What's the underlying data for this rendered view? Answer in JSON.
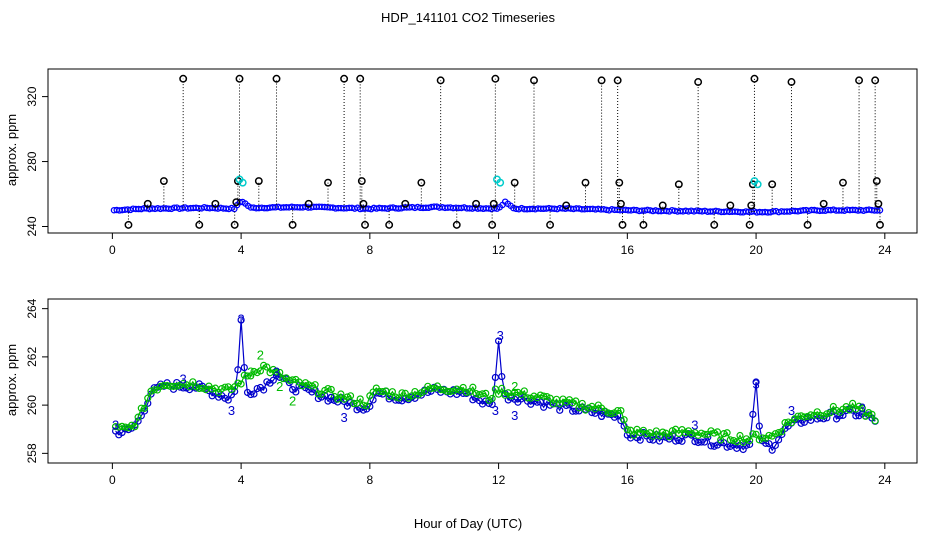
{
  "figure": {
    "title": "HDP_141101  CO2 Timeseries",
    "xlabel": "Hour of Day (UTC)"
  },
  "chart_data": [
    {
      "type": "scatter",
      "title": "",
      "xlabel": "",
      "ylabel": "approx. ppm",
      "xlim": [
        -2,
        25
      ],
      "ylim": [
        236,
        337
      ],
      "xticks": [
        0,
        4,
        8,
        12,
        16,
        20,
        24
      ],
      "yticks": [
        240,
        280,
        320
      ],
      "baseline": {
        "color": "#0000ff",
        "start": 250,
        "hours": [
          0,
          24
        ],
        "profile": [
          [
            0,
            250
          ],
          [
            1,
            251
          ],
          [
            3,
            251.5
          ],
          [
            3.8,
            251
          ],
          [
            4,
            256
          ],
          [
            4.3,
            251.5
          ],
          [
            6,
            252
          ],
          [
            8,
            251
          ],
          [
            10,
            252
          ],
          [
            12,
            251
          ],
          [
            12.2,
            255
          ],
          [
            12.5,
            251
          ],
          [
            14,
            251
          ],
          [
            16,
            250
          ],
          [
            18,
            249.5
          ],
          [
            20,
            249
          ],
          [
            20.3,
            249
          ],
          [
            22,
            250
          ],
          [
            24,
            250
          ]
        ]
      },
      "outliers": {
        "color": "#000000",
        "points": [
          [
            0.5,
            241
          ],
          [
            1.1,
            254
          ],
          [
            1.6,
            268
          ],
          [
            2.2,
            331
          ],
          [
            2.7,
            241
          ],
          [
            3.2,
            254
          ],
          [
            3.8,
            241
          ],
          [
            3.85,
            255
          ],
          [
            3.9,
            268
          ],
          [
            3.95,
            331
          ],
          [
            4.55,
            268
          ],
          [
            5.1,
            331
          ],
          [
            5.6,
            241
          ],
          [
            6.1,
            254
          ],
          [
            6.7,
            267
          ],
          [
            7.2,
            331
          ],
          [
            7.7,
            331
          ],
          [
            7.75,
            268
          ],
          [
            7.8,
            254
          ],
          [
            7.85,
            241
          ],
          [
            8.6,
            241
          ],
          [
            9.1,
            254
          ],
          [
            9.6,
            267
          ],
          [
            10.7,
            241
          ],
          [
            10.2,
            330
          ],
          [
            11.3,
            254
          ],
          [
            11.8,
            241
          ],
          [
            11.85,
            254
          ],
          [
            11.9,
            331
          ],
          [
            12.5,
            267
          ],
          [
            13.1,
            330
          ],
          [
            13.6,
            241
          ],
          [
            14.1,
            253
          ],
          [
            14.7,
            267
          ],
          [
            15.2,
            330
          ],
          [
            15.7,
            330
          ],
          [
            15.75,
            267
          ],
          [
            15.8,
            254
          ],
          [
            15.85,
            241
          ],
          [
            16.5,
            241
          ],
          [
            17.1,
            253
          ],
          [
            17.6,
            266
          ],
          [
            18.2,
            329
          ],
          [
            18.7,
            241
          ],
          [
            19.2,
            253
          ],
          [
            19.8,
            241
          ],
          [
            19.85,
            253
          ],
          [
            19.9,
            266
          ],
          [
            19.95,
            331
          ],
          [
            20.5,
            266
          ],
          [
            21.1,
            329
          ],
          [
            21.6,
            241
          ],
          [
            22.1,
            254
          ],
          [
            22.7,
            267
          ],
          [
            23.2,
            330
          ],
          [
            23.7,
            330
          ],
          [
            23.75,
            268
          ],
          [
            23.8,
            254
          ],
          [
            23.85,
            241
          ]
        ]
      },
      "highlights": {
        "color": "#00cccc",
        "points": [
          [
            3.95,
            269
          ],
          [
            4.05,
            267
          ],
          [
            11.95,
            269
          ],
          [
            12.05,
            267
          ],
          [
            19.95,
            268
          ],
          [
            20.05,
            266
          ]
        ]
      }
    },
    {
      "type": "scatter",
      "title": "",
      "xlabel": "",
      "ylabel": "approx. ppm",
      "xlim": [
        -2,
        25
      ],
      "ylim": [
        257.6,
        264.4
      ],
      "xticks": [
        0,
        4,
        8,
        12,
        16,
        20,
        24
      ],
      "yticks": [
        258,
        260,
        262,
        264
      ],
      "series": [
        {
          "name": "blue",
          "color": "#0000cc",
          "profile": [
            [
              0.1,
              258.9
            ],
            [
              0.5,
              258.9
            ],
            [
              0.8,
              259.3
            ],
            [
              1.2,
              260.5
            ],
            [
              1.6,
              260.8
            ],
            [
              2.5,
              260.8
            ],
            [
              3.2,
              260.5
            ],
            [
              3.6,
              260.3
            ],
            [
              3.85,
              260.6
            ],
            [
              4.0,
              263.5
            ],
            [
              4.15,
              260.5
            ],
            [
              4.7,
              260.8
            ],
            [
              5.1,
              261.3
            ],
            [
              5.5,
              260.8
            ],
            [
              6.5,
              260.4
            ],
            [
              7.5,
              260.0
            ],
            [
              7.9,
              259.9
            ],
            [
              8.2,
              260.5
            ],
            [
              9.0,
              260.3
            ],
            [
              10.0,
              260.6
            ],
            [
              11.0,
              260.5
            ],
            [
              11.7,
              260.0
            ],
            [
              11.85,
              260.2
            ],
            [
              12.0,
              262.8
            ],
            [
              12.15,
              260.4
            ],
            [
              13.0,
              260.2
            ],
            [
              14.0,
              259.9
            ],
            [
              15.0,
              259.7
            ],
            [
              15.8,
              259.5
            ],
            [
              16.0,
              258.8
            ],
            [
              17.0,
              258.6
            ],
            [
              18.0,
              258.7
            ],
            [
              18.5,
              258.5
            ],
            [
              19.0,
              258.4
            ],
            [
              19.8,
              258.3
            ],
            [
              20.0,
              260.8
            ],
            [
              20.15,
              258.4
            ],
            [
              20.5,
              258.3
            ],
            [
              21.0,
              259.1
            ],
            [
              21.5,
              259.4
            ],
            [
              22.5,
              259.6
            ],
            [
              23.0,
              259.7
            ],
            [
              23.7,
              259.4
            ]
          ]
        },
        {
          "name": "green",
          "color": "#00bb00",
          "profile": [
            [
              0.1,
              259.0
            ],
            [
              0.5,
              259.0
            ],
            [
              0.8,
              259.4
            ],
            [
              1.2,
              260.6
            ],
            [
              1.6,
              260.9
            ],
            [
              2.5,
              260.9
            ],
            [
              3.2,
              260.7
            ],
            [
              3.6,
              260.6
            ],
            [
              3.85,
              260.8
            ],
            [
              4.0,
              261.0
            ],
            [
              4.5,
              261.5
            ],
            [
              4.7,
              261.6
            ],
            [
              5.1,
              261.3
            ],
            [
              5.5,
              261.0
            ],
            [
              6.5,
              260.6
            ],
            [
              7.5,
              260.2
            ],
            [
              7.9,
              260.1
            ],
            [
              8.2,
              260.6
            ],
            [
              9.0,
              260.4
            ],
            [
              10.0,
              260.7
            ],
            [
              11.0,
              260.7
            ],
            [
              11.7,
              260.3
            ],
            [
              12.0,
              260.6
            ],
            [
              12.5,
              260.5
            ],
            [
              13.0,
              260.4
            ],
            [
              14.0,
              260.1
            ],
            [
              15.0,
              259.9
            ],
            [
              15.8,
              259.7
            ],
            [
              16.0,
              258.9
            ],
            [
              17.0,
              258.8
            ],
            [
              18.0,
              258.9
            ],
            [
              18.5,
              258.8
            ],
            [
              19.0,
              258.7
            ],
            [
              19.8,
              258.6
            ],
            [
              20.0,
              258.7
            ],
            [
              20.5,
              258.7
            ],
            [
              21.0,
              259.3
            ],
            [
              21.5,
              259.6
            ],
            [
              22.5,
              259.8
            ],
            [
              23.0,
              259.9
            ],
            [
              23.7,
              259.5
            ]
          ]
        }
      ],
      "labels": {
        "text": "3",
        "color": "#0000cc",
        "points": [
          [
            0.1,
            259.2
          ],
          [
            2.2,
            261.1
          ],
          [
            3.7,
            259.8
          ],
          [
            4.0,
            263.6
          ],
          [
            5.1,
            261.4
          ],
          [
            6.8,
            260.3
          ],
          [
            7.2,
            259.5
          ],
          [
            11.9,
            259.8
          ],
          [
            12.05,
            262.9
          ],
          [
            12.5,
            259.6
          ],
          [
            15.2,
            259.6
          ],
          [
            18.1,
            259.2
          ],
          [
            20.0,
            260.9
          ],
          [
            21.1,
            259.8
          ],
          [
            23.3,
            259.9
          ]
        ]
      },
      "green_labels": {
        "text": "2",
        "color": "#00bb00",
        "points": [
          [
            4.6,
            262.1
          ],
          [
            4.3,
            261.4
          ],
          [
            5.2,
            260.8
          ],
          [
            5.6,
            260.2
          ],
          [
            12.5,
            260.8
          ]
        ]
      }
    }
  ]
}
